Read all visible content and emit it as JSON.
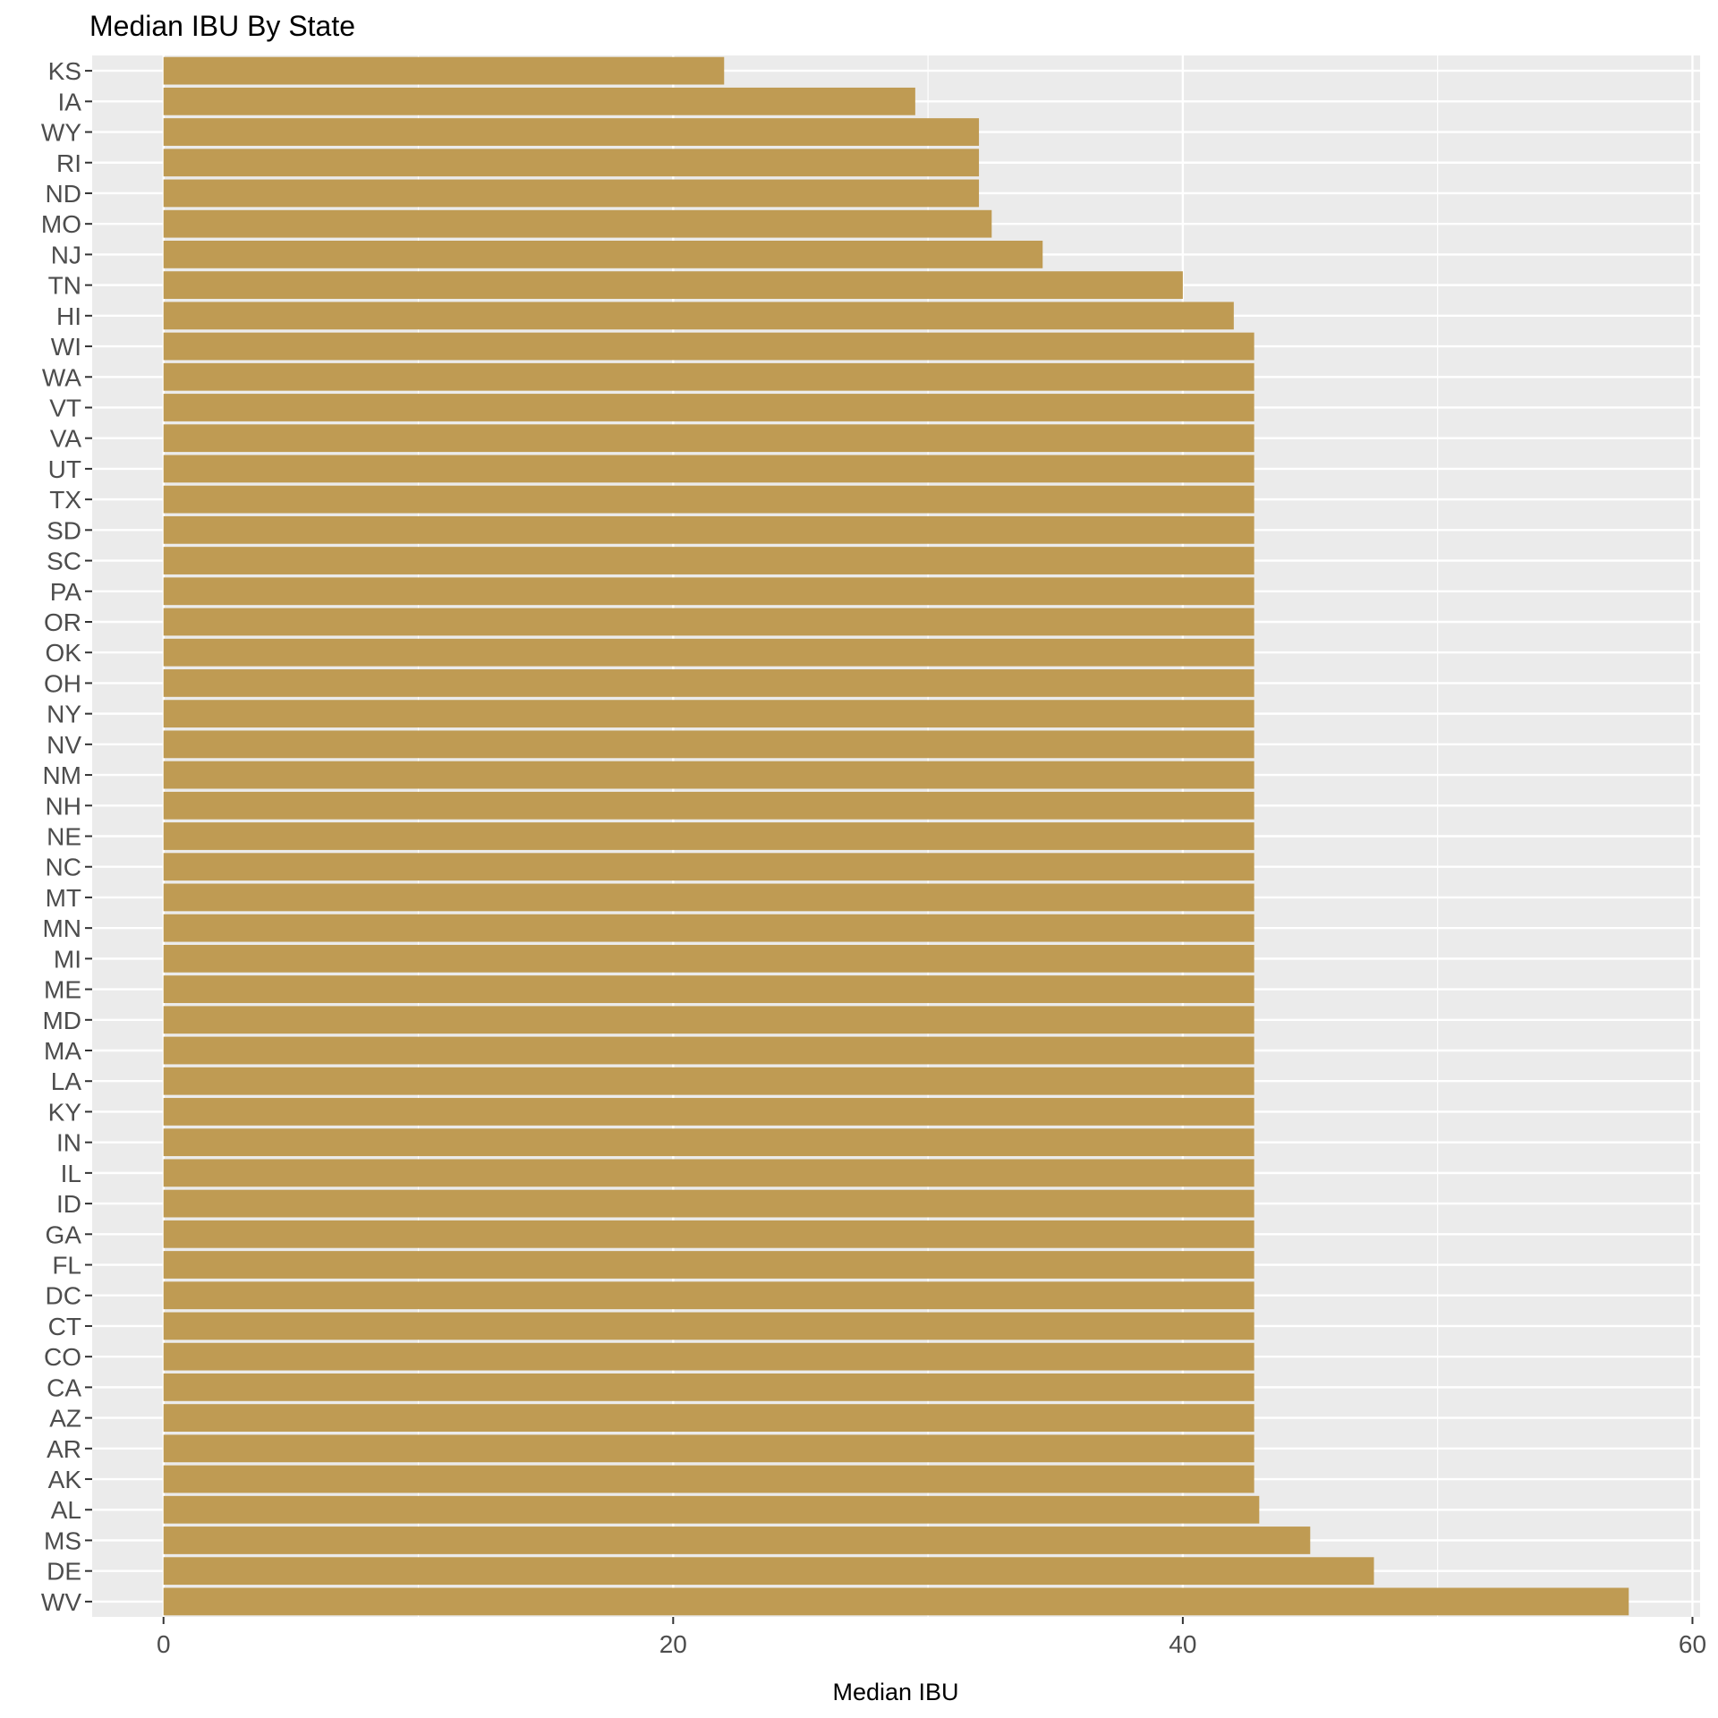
{
  "chart_data": {
    "type": "bar",
    "orientation": "horizontal",
    "title": "Median IBU By State",
    "xlabel": "Median IBU",
    "ylabel": "",
    "xlim": [
      -2.8,
      60.3
    ],
    "xticks": [
      0,
      20,
      40,
      60
    ],
    "grid": true,
    "bar_color": "#bf9b53",
    "panel_color": "#ebebeb",
    "categories": [
      "KS",
      "IA",
      "WY",
      "RI",
      "ND",
      "MO",
      "NJ",
      "TN",
      "HI",
      "WI",
      "WA",
      "VT",
      "VA",
      "UT",
      "TX",
      "SD",
      "SC",
      "PA",
      "OR",
      "OK",
      "OH",
      "NY",
      "NV",
      "NM",
      "NH",
      "NE",
      "NC",
      "MT",
      "MN",
      "MI",
      "ME",
      "MD",
      "MA",
      "LA",
      "KY",
      "IN",
      "IL",
      "ID",
      "GA",
      "FL",
      "DC",
      "CT",
      "CO",
      "CA",
      "AZ",
      "AR",
      "AK",
      "AL",
      "MS",
      "DE",
      "WV"
    ],
    "values": [
      22,
      29.5,
      32,
      32,
      32,
      32.5,
      34.5,
      40,
      42,
      42.8,
      42.8,
      42.8,
      42.8,
      42.8,
      42.8,
      42.8,
      42.8,
      42.8,
      42.8,
      42.8,
      42.8,
      42.8,
      42.8,
      42.8,
      42.8,
      42.8,
      42.8,
      42.8,
      42.8,
      42.8,
      42.8,
      42.8,
      42.8,
      42.8,
      42.8,
      42.8,
      42.8,
      42.8,
      42.8,
      42.8,
      42.8,
      42.8,
      42.8,
      42.8,
      42.8,
      42.8,
      42.8,
      43,
      45,
      47.5,
      57.5
    ]
  }
}
